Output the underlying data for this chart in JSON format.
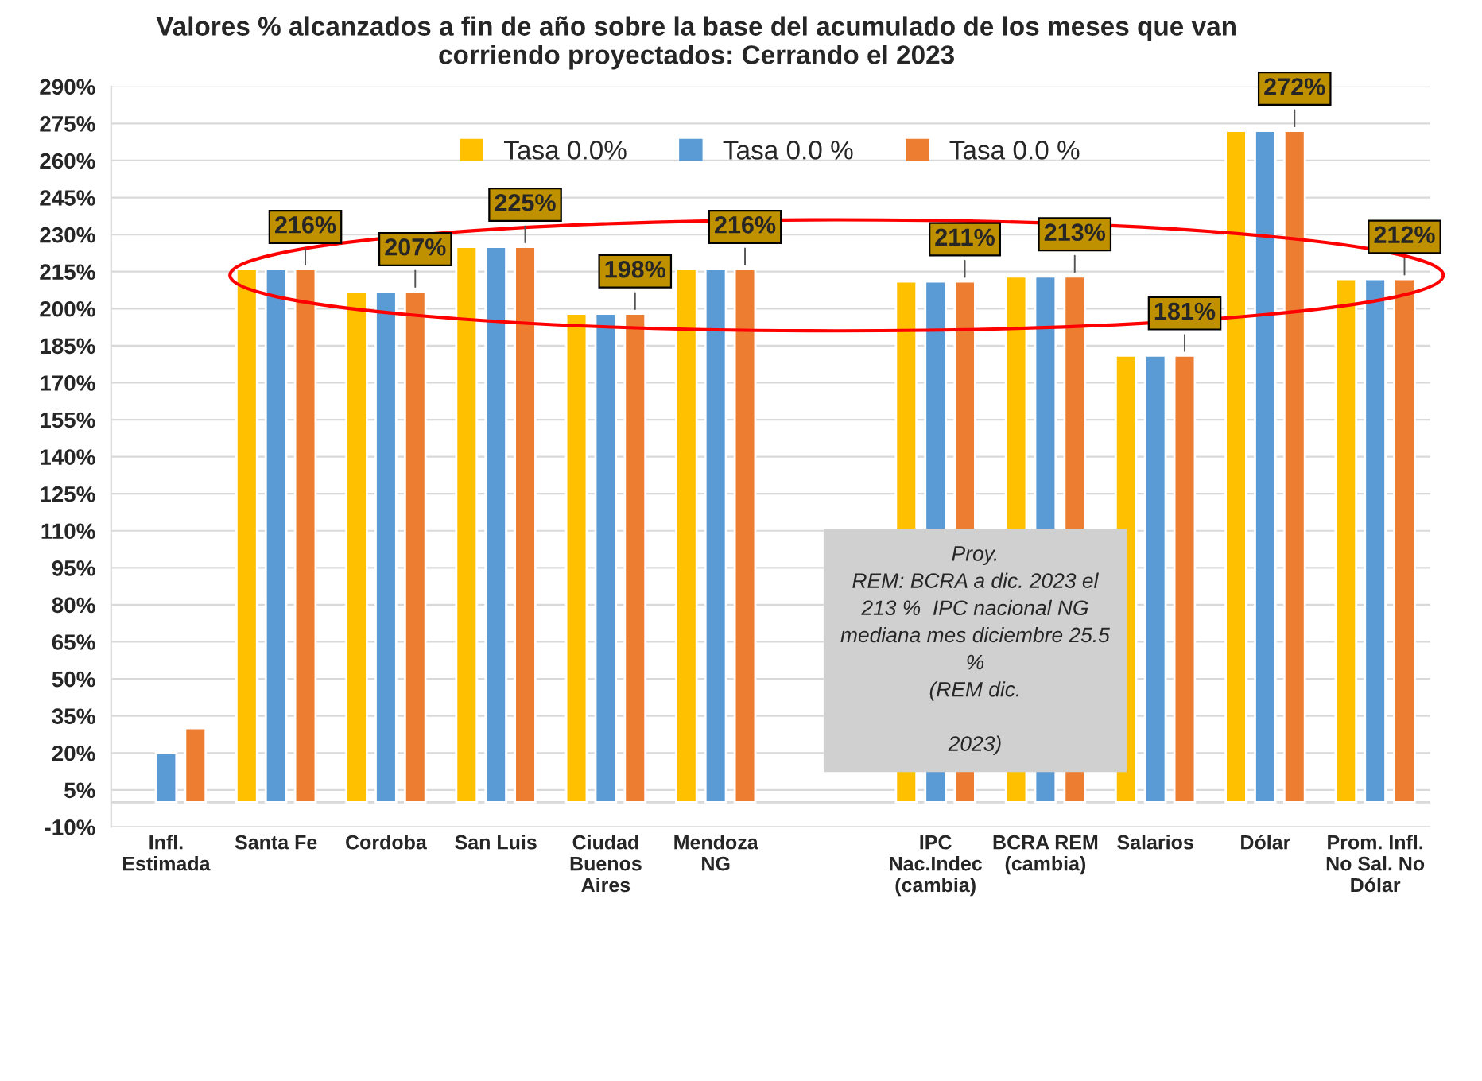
{
  "chart_data": {
    "type": "bar",
    "title": "Valores % alcanzados a fin de año sobre la base del acumulado de los meses que van\ncorriendo proyectados: Cerrando el 2023",
    "categories": [
      "Infl.\nEstimada",
      "Santa Fe",
      "Cordoba",
      "San Luis",
      "Ciudad\nBuenos\nAires",
      "Mendoza\nNG",
      null,
      "IPC\nNac.Indec\n(cambia)",
      "BCRA REM\n(cambia)",
      "Salarios",
      "Dólar",
      "Prom. Infl.\nNo Sal. No\nDólar"
    ],
    "series": [
      {
        "name": "Tasa 0.0%",
        "color": "#ffc000",
        "values": [
          null,
          216,
          207,
          225,
          198,
          216,
          null,
          211,
          213,
          181,
          272,
          212
        ]
      },
      {
        "name": "Tasa 0.0 %",
        "color": "#5b9bd5",
        "values": [
          20,
          216,
          207,
          225,
          198,
          216,
          null,
          211,
          213,
          181,
          272,
          212
        ]
      },
      {
        "name": "Tasa 0.0 %",
        "color": "#ed7d31",
        "values": [
          30,
          216,
          207,
          225,
          198,
          216,
          null,
          211,
          213,
          181,
          272,
          212
        ],
        "value_labels": [
          null,
          "216%",
          "207%",
          "225%",
          "198%",
          "216%",
          null,
          "211%",
          "213%",
          "181%",
          "272%",
          "212%"
        ]
      }
    ],
    "ylim": [
      -10,
      290
    ],
    "yticks": [
      {
        "value": -10,
        "label": "-10%"
      },
      {
        "value": 5,
        "label": "5%"
      },
      {
        "value": 20,
        "label": "20%"
      },
      {
        "value": 35,
        "label": "35%"
      },
      {
        "value": 50,
        "label": "50%"
      },
      {
        "value": 65,
        "label": "65%"
      },
      {
        "value": 80,
        "label": "80%"
      },
      {
        "value": 95,
        "label": "95%"
      },
      {
        "value": 110,
        "label": "110%"
      },
      {
        "value": 125,
        "label": "125%"
      },
      {
        "value": 140,
        "label": "140%"
      },
      {
        "value": 155,
        "label": "155%"
      },
      {
        "value": 170,
        "label": "170%"
      },
      {
        "value": 185,
        "label": "185%"
      },
      {
        "value": 200,
        "label": "200%"
      },
      {
        "value": 215,
        "label": "215%"
      },
      {
        "value": 230,
        "label": "230%"
      },
      {
        "value": 245,
        "label": "245%"
      },
      {
        "value": 260,
        "label": "260%"
      },
      {
        "value": 275,
        "label": "275%"
      },
      {
        "value": 290,
        "label": "290%"
      }
    ],
    "grid": "y",
    "legend": "top",
    "annotations": [
      "Proy.\nREM: BCRA a dic. 2023 el\n213 %  IPC nacional NG\nmediana mes diciembre 25.5\n%\n(REM dic.\n\n2023)"
    ]
  }
}
